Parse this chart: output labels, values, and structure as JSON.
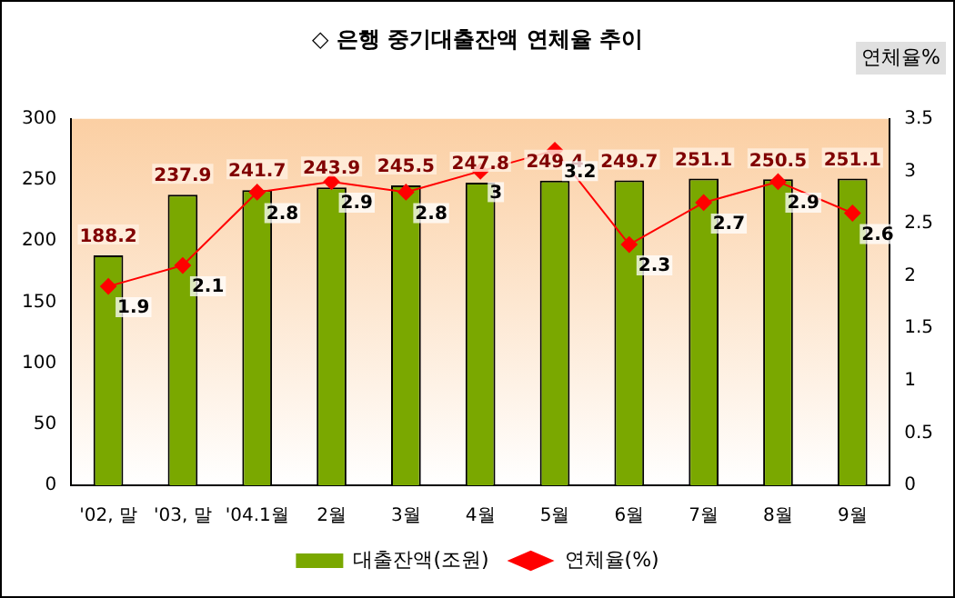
{
  "chart_data": {
    "type": "bar",
    "title": "◇ 은행 중기대출잔액 연체율 추이",
    "y2label": "연체율%",
    "categories": [
      "'02, 말",
      "'03, 말",
      "'04.1월",
      "2월",
      "3월",
      "4월",
      "5월",
      "6월",
      "7월",
      "8월",
      "9월"
    ],
    "series": [
      {
        "name": "대출잔액(조원)",
        "color": "#7aa800",
        "values": [
          188.2,
          237.9,
          241.7,
          243.9,
          245.5,
          247.8,
          249.4,
          249.7,
          251.1,
          250.5,
          251.1
        ]
      },
      {
        "name": "연체율(%)",
        "type": "line",
        "axis": "y2",
        "color": "#ff0000",
        "values": [
          1.9,
          2.1,
          2.8,
          2.9,
          2.8,
          3,
          3.2,
          2.3,
          2.7,
          2.9,
          2.6
        ]
      }
    ],
    "ylim": [
      0,
      300
    ],
    "yticks": [
      0,
      50,
      100,
      150,
      200,
      250,
      300
    ],
    "y2lim": [
      0,
      3.5
    ],
    "y2ticks": [
      0,
      0.5,
      1,
      1.5,
      2,
      2.5,
      3,
      3.5
    ],
    "data_labels": true,
    "grid": false,
    "legend": "bottom",
    "marker": "diamond",
    "line_style": "solid"
  }
}
